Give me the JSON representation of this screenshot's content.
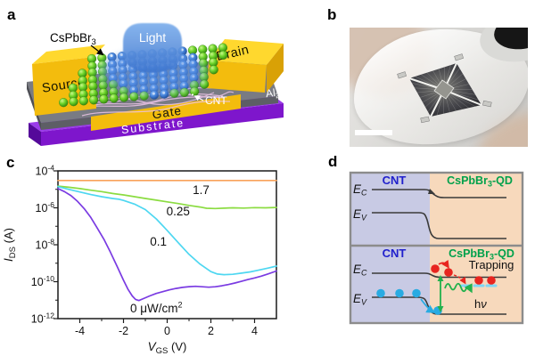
{
  "panels": {
    "a": "a",
    "b": "b",
    "c": "c",
    "d": "d"
  },
  "panel_a": {
    "labels": {
      "cspbbr3_base": "CsPbBr",
      "cspbbr3_sub": "3",
      "light": "Light",
      "source": "Source",
      "drain": "Drain",
      "cnt": "CNT",
      "al_1": "Al",
      "al_2": "2",
      "al_3": "O",
      "al_4": "3",
      "gate": "Gate",
      "substrate": "Substrate"
    },
    "colors": {
      "electrode": "#F3BC0D",
      "electrode_top": "#FFD82E",
      "electrode_side": "#D9A106",
      "body_gray": "#797B83",
      "body_gray_front": "#5D5E65",
      "substrate_purple": "#7E16CC",
      "substrate_purple_top": "#9B3BEA",
      "qd_green": "#5ECF1B",
      "beam_blue": "#4C86DC",
      "cnt_pink": "#ECC3E6"
    }
  },
  "panel_b": {
    "colors": {
      "background": "#DEDDDA",
      "film": "#F4F3F0",
      "pattern_dark": "#2C2C30",
      "pattern_center": "#95958F",
      "finger": "#D5BFAE"
    }
  },
  "chart_data": {
    "type": "line",
    "title": "",
    "xlabel_main": "V",
    "xlabel_sub": "GS",
    "xlabel_unit": "(V)",
    "ylabel_main": "I",
    "ylabel_sub": "DS",
    "ylabel_unit": "(A)",
    "x_min": -5,
    "x_max": 5,
    "x_major_ticks": [
      -4,
      -2,
      0,
      2,
      4
    ],
    "x_minor_ticks": [
      -3,
      -1,
      1,
      3
    ],
    "y_scale": "log",
    "y_exp_top": -4,
    "y_exp_bottom": -12,
    "y_major_exponents": [
      -4,
      -6,
      -8,
      -10,
      -12
    ],
    "y_minor_exponents": [
      -5,
      -7,
      -9,
      -11
    ],
    "grid": false,
    "legend": "inline-labels",
    "series": [
      {
        "name": "1.7 uW/cm2",
        "label": "1.7",
        "label_sup": "",
        "color": "#F9A25A",
        "label_x": 1.55,
        "label_y": 8.5e-06,
        "points": [
          [
            -5,
            3e-05
          ],
          [
            5,
            3e-05
          ]
        ]
      },
      {
        "name": "0.25 uW/cm2",
        "label": "0.25",
        "label_sup": "",
        "color": "#8BDC41",
        "label_x": 0.5,
        "label_y": 6e-07,
        "points": [
          [
            -5,
            1.5e-05
          ],
          [
            -4.5,
            1.3e-05
          ],
          [
            -4,
            1.1e-05
          ],
          [
            -3.5,
            9e-06
          ],
          [
            -3,
            7.5e-06
          ],
          [
            -2.5,
            6e-06
          ],
          [
            -2,
            5e-06
          ],
          [
            -1.5,
            4e-06
          ],
          [
            -1,
            3.2e-06
          ],
          [
            -0.5,
            2.6e-06
          ],
          [
            0,
            2.1e-06
          ],
          [
            0.5,
            1.7e-06
          ],
          [
            1,
            1.35e-06
          ],
          [
            1.5,
            1.1e-06
          ],
          [
            1.8,
            9.5e-07
          ],
          [
            2.2,
            9.2e-07
          ],
          [
            2.6,
            9.6e-07
          ],
          [
            3,
            1e-06
          ],
          [
            3.5,
            9.7e-07
          ],
          [
            4,
            1.02e-06
          ],
          [
            4.5,
            1e-06
          ],
          [
            5,
            1.05e-06
          ]
        ]
      },
      {
        "name": "0.1 uW/cm2",
        "label": "0.1",
        "label_sup": "",
        "color": "#4ED7F1",
        "label_x": -0.4,
        "label_y": 1.4e-08,
        "points": [
          [
            -5,
            1.4e-05
          ],
          [
            -4.5,
            1e-05
          ],
          [
            -4,
            7.2e-06
          ],
          [
            -3.5,
            5.2e-06
          ],
          [
            -3,
            4e-06
          ],
          [
            -2.5,
            3.2e-06
          ],
          [
            -2.2,
            2.9e-06
          ],
          [
            -2,
            2.5e-06
          ],
          [
            -1.5,
            1.6e-06
          ],
          [
            -1,
            8e-07
          ],
          [
            -0.5,
            2.5e-07
          ],
          [
            0,
            6e-08
          ],
          [
            0.5,
            1.3e-08
          ],
          [
            1,
            3e-09
          ],
          [
            1.5,
            9e-10
          ],
          [
            2,
            3.5e-10
          ],
          [
            2.3,
            2.6e-10
          ],
          [
            2.6,
            2.4e-10
          ],
          [
            3,
            2.5e-10
          ],
          [
            3.4,
            2.9e-10
          ],
          [
            3.8,
            3.4e-10
          ],
          [
            4.2,
            4.3e-10
          ],
          [
            4.6,
            5.4e-10
          ],
          [
            5,
            7e-10
          ]
        ]
      },
      {
        "name": "0 uW/cm2",
        "label": "0 μW/cm",
        "label_sup": "2",
        "color": "#7A3BE2",
        "label_x": -0.5,
        "label_y": 3.4e-12,
        "points": [
          [
            -5,
            1.1e-05
          ],
          [
            -4.7,
            7.5e-06
          ],
          [
            -4.4,
            4.5e-06
          ],
          [
            -4.1,
            2.2e-06
          ],
          [
            -3.8,
            9e-07
          ],
          [
            -3.5,
            3e-07
          ],
          [
            -3.2,
            8e-08
          ],
          [
            -2.9,
            2e-08
          ],
          [
            -2.6,
            4e-09
          ],
          [
            -2.3,
            7e-10
          ],
          [
            -2,
            1.2e-10
          ],
          [
            -1.8,
            4e-11
          ],
          [
            -1.6,
            1.7e-11
          ],
          [
            -1.45,
            1.1e-11
          ],
          [
            -1.3,
            9.5e-12
          ],
          [
            -1.1,
            1.2e-11
          ],
          [
            -0.8,
            1.7e-11
          ],
          [
            -0.5,
            2.3e-11
          ],
          [
            -0.2,
            2.9e-11
          ],
          [
            0.1,
            3.6e-11
          ],
          [
            0.4,
            4.3e-11
          ],
          [
            0.7,
            4.9e-11
          ],
          [
            1,
            5.4e-11
          ],
          [
            1.3,
            5.6e-11
          ],
          [
            1.6,
            5.3e-11
          ],
          [
            1.9,
            5e-11
          ],
          [
            2.2,
            5.3e-11
          ],
          [
            2.5,
            6e-11
          ],
          [
            2.8,
            7e-11
          ],
          [
            3.1,
            8.5e-11
          ],
          [
            3.4,
            1.05e-10
          ],
          [
            3.7,
            1.3e-10
          ],
          [
            4,
            1.6e-10
          ],
          [
            4.3,
            2e-10
          ],
          [
            4.6,
            2.6e-10
          ],
          [
            5,
            3.8e-10
          ]
        ]
      }
    ]
  },
  "panel_d": {
    "top": {
      "cnt": "CNT",
      "qd_base": "CsPbBr",
      "qd_sub": "3",
      "qd_rest": "-QD",
      "ec_base": "E",
      "ec_sub": "C",
      "ev_base": "E",
      "ev_sub": "V"
    },
    "bottom": {
      "cnt": "CNT",
      "qd_base": "CsPbBr",
      "qd_sub": "3",
      "qd_rest": "-QD",
      "ec_base": "E",
      "ec_sub": "C",
      "ev_base": "E",
      "ev_sub": "V",
      "trapping": "Trapping",
      "hv_h": "h",
      "hv_nu": "ν"
    },
    "colors": {
      "cnt_bg": "#C8CAE4",
      "qd_bg": "#F7D9BC",
      "cnt_text": "#2020CC",
      "qd_text": "#00A14B",
      "electron_red": "#E8251F",
      "hole_blue": "#29ABE2",
      "photon_green": "#22B14C",
      "trap_level": "#7ED7F5",
      "band": "#3A3A3A",
      "border": "#8C8C8C"
    }
  }
}
